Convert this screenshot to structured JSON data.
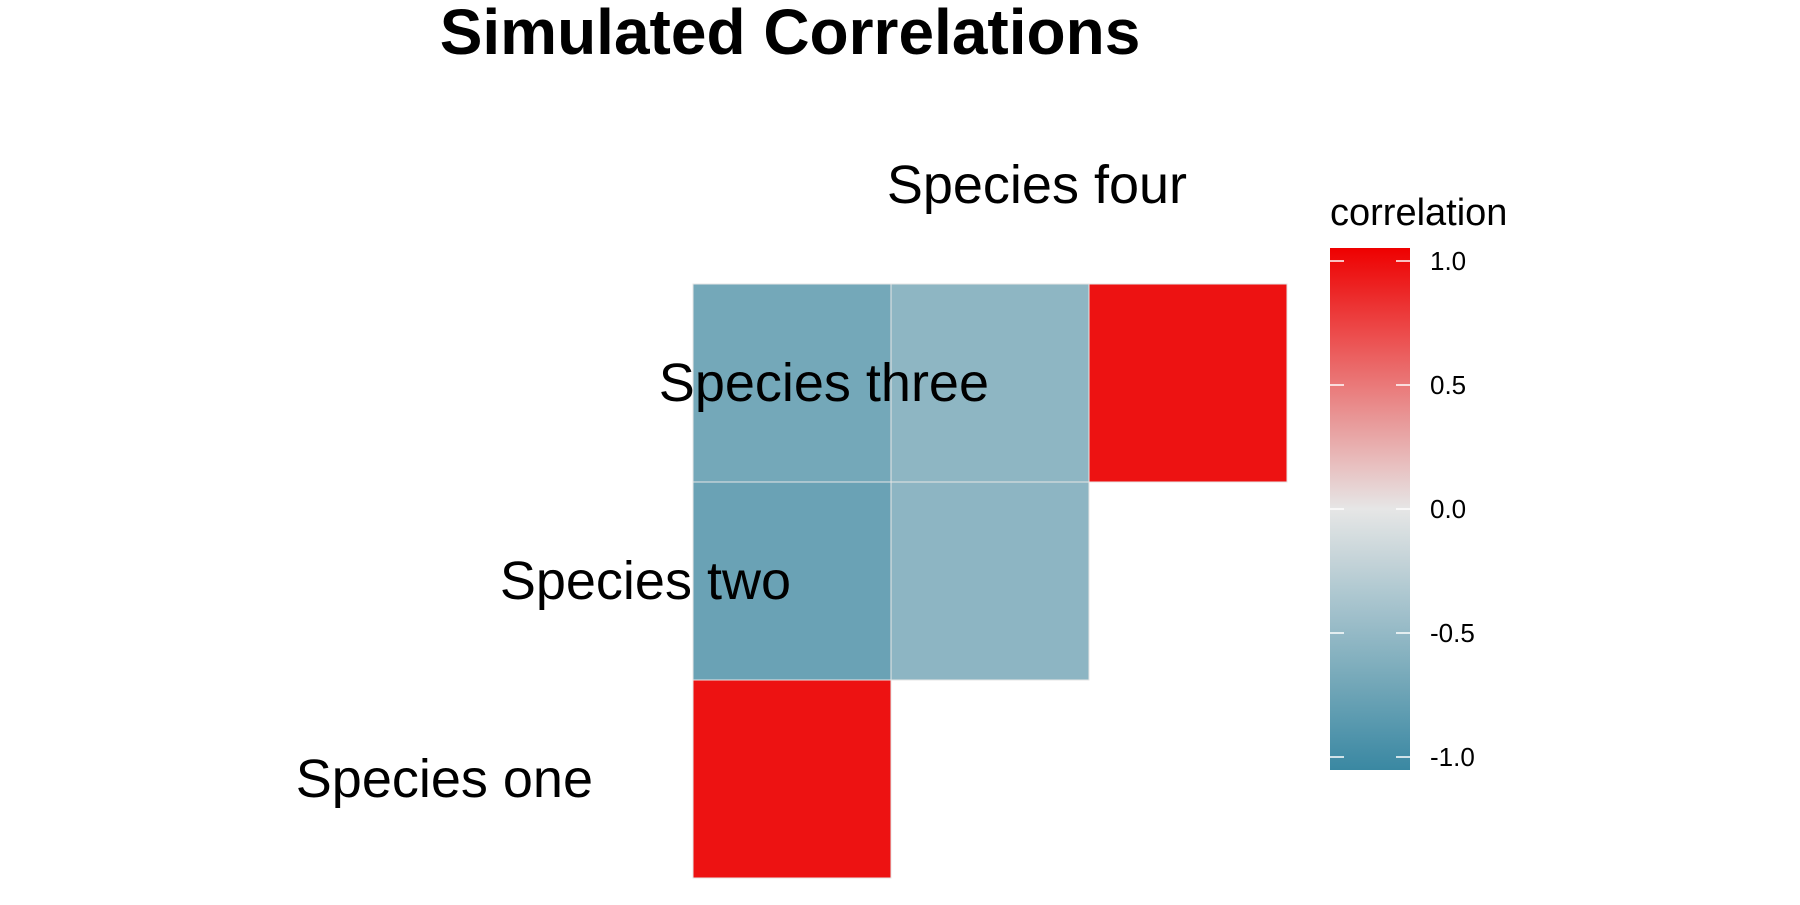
{
  "chart_data": {
    "type": "heatmap",
    "title": "Simulated Correlations",
    "xlabel": "",
    "ylabel": "",
    "labels": [
      "Species one",
      "Species two",
      "Species three",
      "Species four"
    ],
    "cells": [
      {
        "row": "Species one",
        "col": "Species one",
        "value": 0.92
      },
      {
        "row": "Species one",
        "col": "Species two",
        "value": -0.72
      },
      {
        "row": "Species one",
        "col": "Species three",
        "value": -0.66
      },
      {
        "row": "Species two",
        "col": "Species two",
        "value": -0.52
      },
      {
        "row": "Species two",
        "col": "Species three",
        "value": -0.51
      },
      {
        "row": "Species three",
        "col": "Species three",
        "value": 0.92
      }
    ],
    "legend": {
      "title": "correlation",
      "position": "right",
      "range": [
        -1.0,
        1.0
      ],
      "ticks": [
        {
          "value": 1.0,
          "label": "1.0"
        },
        {
          "value": 0.5,
          "label": "0.5"
        },
        {
          "value": 0.0,
          "label": "0.0"
        },
        {
          "value": -0.5,
          "label": "-0.5"
        },
        {
          "value": -1.0,
          "label": "-1.0"
        }
      ]
    },
    "colors": {
      "low": "#3a88a2",
      "mid": "#e6e6e6",
      "high": "#ee0000"
    }
  }
}
